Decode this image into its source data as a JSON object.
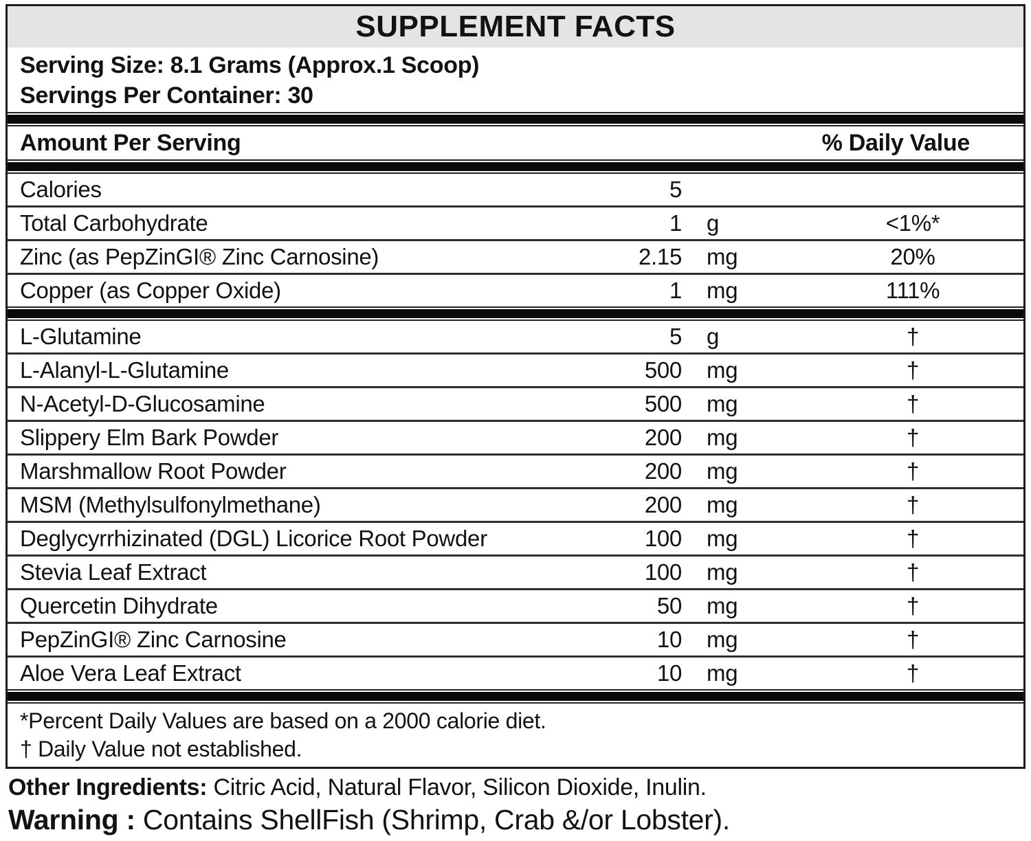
{
  "title": "SUPPLEMENT FACTS",
  "serving": {
    "serving_size": "Serving Size: 8.1 Grams (Approx.1 Scoop)",
    "servings_per_container": "Servings Per Container: 30"
  },
  "table": {
    "header": {
      "left": "Amount Per Serving",
      "right": "% Daily Value"
    },
    "main_rows": [
      {
        "name": "Calories",
        "amount": "5",
        "unit": "",
        "dv": ""
      },
      {
        "name": "Total Carbohydrate",
        "amount": "1",
        "unit": "g",
        "dv": "<1%*"
      },
      {
        "name": "Zinc (as PepZinGI® Zinc Carnosine)",
        "amount": "2.15",
        "unit": "mg",
        "dv": "20%"
      },
      {
        "name": "Copper (as Copper Oxide)",
        "amount": "1",
        "unit": "mg",
        "dv": "111%"
      }
    ],
    "blend_rows": [
      {
        "name": "L-Glutamine",
        "amount": "5",
        "unit": "g",
        "dv": "†"
      },
      {
        "name": "L-Alanyl-L-Glutamine",
        "amount": "500",
        "unit": "mg",
        "dv": "†"
      },
      {
        "name": "N-Acetyl-D-Glucosamine",
        "amount": "500",
        "unit": "mg",
        "dv": "†"
      },
      {
        "name": "Slippery Elm Bark Powder",
        "amount": "200",
        "unit": "mg",
        "dv": "†"
      },
      {
        "name": "Marshmallow Root Powder",
        "amount": "200",
        "unit": "mg",
        "dv": "†"
      },
      {
        "name": "MSM (Methylsulfonylmethane)",
        "amount": "200",
        "unit": "mg",
        "dv": "†"
      },
      {
        "name": "Deglycyrrhizinated (DGL) Licorice Root Powder",
        "amount": "100",
        "unit": "mg",
        "dv": "†"
      },
      {
        "name": "Stevia Leaf Extract",
        "amount": "100",
        "unit": "mg",
        "dv": "†"
      },
      {
        "name": "Quercetin Dihydrate",
        "amount": "50",
        "unit": "mg",
        "dv": "†"
      },
      {
        "name": "PepZinGI® Zinc Carnosine",
        "amount": "10",
        "unit": "mg",
        "dv": "†"
      },
      {
        "name": "Aloe Vera Leaf Extract",
        "amount": "10",
        "unit": "mg",
        "dv": "†"
      }
    ]
  },
  "footnotes": {
    "line1": "*Percent Daily Values are based on a 2000 calorie diet.",
    "line2": "† Daily Value not established."
  },
  "other_ingredients": {
    "label": "Other Ingredients:",
    "text": " Citric Acid, Natural Flavor, Silicon Dioxide, Inulin."
  },
  "warning": {
    "label": "Warning :",
    "text": " Contains ShellFish (Shrimp, Crab &/or Lobster)."
  },
  "colors": {
    "title_band_gray": "#e4e4e4",
    "separator_black": "#0a0a0a"
  }
}
